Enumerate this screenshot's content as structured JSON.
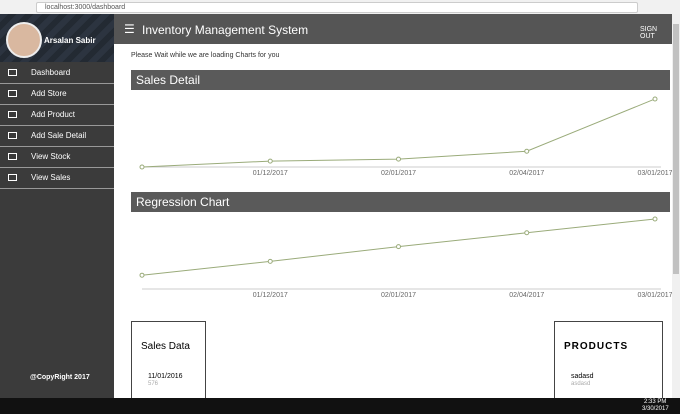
{
  "browser": {
    "url": "localhost:3000/dashboard"
  },
  "sidebar": {
    "user": "Arsalan Sabir",
    "menu": [
      "Dashboard",
      "Add Store",
      "Add Product",
      "Add Sale Detail",
      "View Stock",
      "View Sales"
    ],
    "footer": "@CopyRight 2017"
  },
  "header": {
    "title": "Inventory Management System",
    "action": "SIGN OUT"
  },
  "notice": "Please Wait while we are loading Charts for you",
  "charts": [
    {
      "type": "line",
      "title": "Sales Detail",
      "categories": [
        null,
        "01/12/2017",
        "02/01/2017",
        "02/04/2017",
        "03/01/2017"
      ],
      "values": [
        0,
        6,
        8,
        16,
        69
      ],
      "ylim": [
        0,
        72
      ],
      "color": "#9aab7a"
    },
    {
      "type": "line",
      "title": "Regression Chart",
      "categories": [
        null,
        "01/12/2017",
        "02/01/2017",
        "02/04/2017",
        "03/01/2017"
      ],
      "values": [
        14,
        28,
        43,
        57,
        71
      ],
      "ylim": [
        0,
        72
      ],
      "color": "#9aab7a"
    }
  ],
  "sales_data": {
    "title": "Sales Data",
    "rows": [
      {
        "date": "11/01/2016",
        "value": 576
      }
    ]
  },
  "products": {
    "title": "PRODUCTS",
    "items": [
      {
        "name": "sadasd",
        "detail": "asdasd"
      }
    ]
  },
  "taskbar": {
    "time": "2:33 PM",
    "date": "3/30/2017"
  }
}
